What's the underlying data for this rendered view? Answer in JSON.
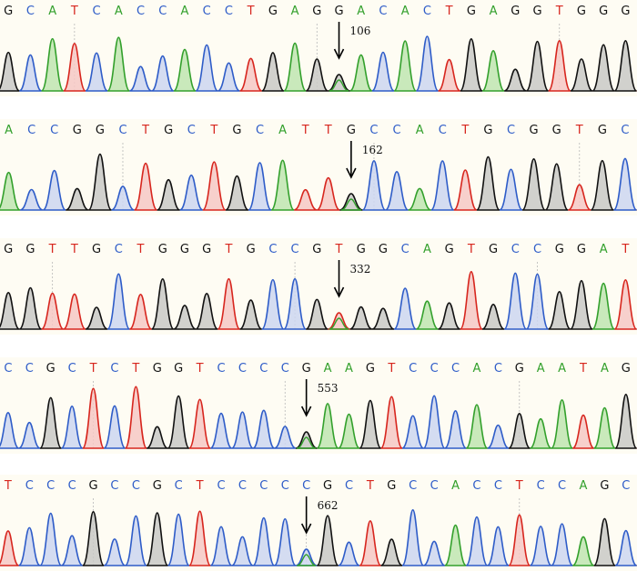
{
  "colors": {
    "A": "#33a02c",
    "C": "#2e5cc8",
    "G": "#111111",
    "T": "#d7261e"
  },
  "fills": {
    "A": "#bfe5b0",
    "C": "#ccd6f0",
    "G": "#c9c9c6",
    "T": "#f6c8c4"
  },
  "panels": [
    {
      "sequence": "GCATCACCACCTGAGGACACTGAGGTGGG",
      "marker": {
        "label": "106",
        "index": 15
      },
      "dashed_at": [
        3,
        14,
        25
      ]
    },
    {
      "sequence": "ACCGGCTGCTGCATTGCCACTGCGGTGC",
      "marker": {
        "label": "162",
        "index": 15
      },
      "dashed_at": [
        5,
        16,
        25
      ]
    },
    {
      "sequence": "GGTTGCTGGGTGCCGTGGCAGTGCCGGAT",
      "marker": {
        "label": "332",
        "index": 15
      },
      "dashed_at": [
        2,
        13,
        24
      ]
    },
    {
      "sequence": "CCGCTCTGGTCCCCGAAGTCCCACGAATAG",
      "marker": {
        "label": "553",
        "index": 14
      },
      "dashed_at": [
        4,
        13,
        24
      ]
    },
    {
      "sequence": "TCCCGCCGCTCCCCCGCTGCCACCTCCAGC",
      "marker": {
        "label": "662",
        "index": 14
      },
      "dashed_at": [
        4,
        14,
        24
      ]
    }
  ]
}
